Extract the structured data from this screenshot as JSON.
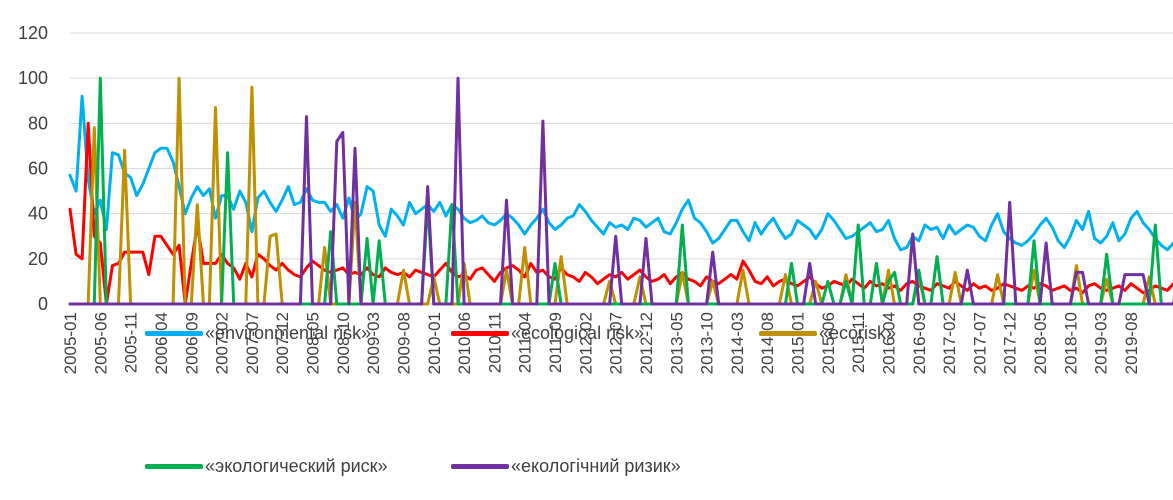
{
  "chart_data": {
    "type": "line",
    "ylim": [
      0,
      120
    ],
    "yticks": [
      "0",
      "20",
      "40",
      "60",
      "80",
      "100",
      "120"
    ],
    "grid": true,
    "legend_position": "bottom",
    "x_start": "2005-01",
    "x_labels": [
      "2005-01",
      "2005-06",
      "2005-11",
      "2006-04",
      "2006-09",
      "2007-02",
      "2007-07",
      "2007-12",
      "2008-05",
      "2008-10",
      "2009-03",
      "2009-08",
      "2010-01",
      "2010-06",
      "2010-11",
      "2011-04",
      "2011-09",
      "2012-02",
      "2012-07",
      "2012-12",
      "2013-05",
      "2013-10",
      "2014-03",
      "2014-08",
      "2015-01",
      "2015-06",
      "2015-11",
      "2016-04",
      "2016-09",
      "2017-02",
      "2017-07",
      "2017-12",
      "2018-05",
      "2018-10",
      "2019-03",
      "2019-08"
    ],
    "series": [
      {
        "name": "«environmental risk»",
        "color": "#00B0F0",
        "values": [
          57,
          50,
          92,
          55,
          40,
          46,
          33,
          67,
          66,
          58,
          56,
          48,
          53,
          60,
          67,
          69,
          69,
          63,
          52,
          40,
          47,
          52,
          48,
          51,
          38,
          48,
          48,
          42,
          50,
          45,
          32,
          47,
          50,
          45,
          41,
          46,
          52,
          44,
          45,
          51,
          46,
          45,
          45,
          41,
          44,
          38,
          47,
          37,
          40,
          52,
          50,
          35,
          30,
          42,
          39,
          35,
          45,
          40,
          42,
          44,
          41,
          45,
          39,
          44,
          42,
          38,
          36,
          37,
          39,
          36,
          35,
          37,
          40,
          38,
          35,
          31,
          35,
          38,
          42,
          36,
          33,
          35,
          38,
          39,
          44,
          41,
          37,
          34,
          31,
          36,
          34,
          35,
          33,
          38,
          37,
          34,
          36,
          38,
          32,
          31,
          36,
          42,
          46,
          38,
          36,
          32,
          27,
          29,
          33,
          37,
          37,
          32,
          28,
          36,
          31,
          35,
          38,
          33,
          29,
          31,
          37,
          35,
          33,
          29,
          33,
          40,
          37,
          33,
          29,
          30,
          32,
          34,
          36,
          32,
          33,
          37,
          29,
          24,
          25,
          30,
          28,
          35,
          33,
          34,
          29,
          35,
          31,
          33,
          35,
          34,
          30,
          28,
          35,
          40,
          32,
          29,
          27,
          26,
          28,
          31,
          35,
          38,
          34,
          28,
          25,
          30,
          37,
          33,
          41,
          29,
          27,
          30,
          36,
          28,
          31,
          38,
          41,
          36,
          33,
          29,
          26,
          24,
          27,
          30,
          33,
          30,
          28,
          35,
          38,
          36,
          32,
          29,
          27,
          25,
          29,
          34,
          36,
          38,
          33,
          30,
          26,
          24,
          31,
          33,
          35,
          38,
          36,
          29,
          27,
          33,
          40,
          41,
          37,
          34,
          30,
          24,
          26,
          29,
          33,
          38,
          35,
          33,
          28,
          30,
          36,
          34,
          27,
          29,
          32,
          38,
          43,
          35,
          30,
          26,
          24,
          27,
          32,
          31,
          34,
          29,
          27,
          30,
          33,
          35,
          32,
          26,
          24,
          26,
          31,
          35,
          37,
          33,
          28,
          26,
          24,
          26,
          36,
          32,
          35
        ]
      },
      {
        "name": "«ecological risk»",
        "color": "#FF0000",
        "values": [
          42,
          22,
          20,
          80,
          30,
          27,
          0,
          17,
          18,
          23,
          23,
          23,
          23,
          13,
          30,
          30,
          26,
          22,
          26,
          0,
          18,
          35,
          18,
          18,
          18,
          22,
          18,
          16,
          11,
          18,
          12,
          22,
          20,
          17,
          15,
          18,
          15,
          13,
          12,
          16,
          19,
          17,
          15,
          14,
          15,
          16,
          13,
          14,
          13,
          16,
          13,
          12,
          16,
          14,
          13,
          14,
          12,
          15,
          14,
          13,
          12,
          15,
          18,
          14,
          12,
          13,
          11,
          15,
          16,
          13,
          10,
          14,
          16,
          17,
          15,
          12,
          18,
          14,
          15,
          12,
          11,
          16,
          13,
          12,
          10,
          14,
          12,
          9,
          11,
          13,
          12,
          14,
          11,
          13,
          15,
          12,
          10,
          11,
          13,
          9,
          12,
          14,
          11,
          10,
          8,
          12,
          10,
          9,
          11,
          13,
          11,
          19,
          15,
          10,
          9,
          12,
          8,
          10,
          11,
          9,
          8,
          10,
          12,
          9,
          7,
          8,
          10,
          9,
          8,
          11,
          9,
          7,
          10,
          8,
          9,
          7,
          8,
          6,
          9,
          10,
          8,
          7,
          6,
          9,
          8,
          7,
          10,
          8,
          6,
          9,
          7,
          8,
          6,
          7,
          9,
          8,
          7,
          6,
          8,
          7,
          9,
          8,
          6,
          7,
          8,
          6,
          7,
          5,
          8,
          9,
          7,
          6,
          7,
          8,
          6,
          9,
          7,
          5,
          6,
          8,
          7,
          6,
          9,
          8,
          6,
          7,
          5,
          8,
          6,
          7,
          9,
          7,
          6,
          8,
          5,
          7,
          6,
          8,
          7,
          9,
          6,
          8,
          7,
          5,
          6,
          8,
          7,
          6,
          8,
          7,
          5,
          6,
          7,
          9,
          8,
          6,
          7,
          5,
          8,
          6,
          7,
          8,
          6,
          5,
          7,
          6,
          8,
          7,
          5,
          6,
          8,
          7,
          6,
          5,
          7,
          8,
          6,
          7,
          5,
          6,
          8,
          7,
          6,
          5,
          7,
          6,
          8,
          7,
          5,
          6,
          7,
          6,
          8,
          5,
          7,
          6,
          8,
          7
        ]
      },
      {
        "name": "«ecorisk»",
        "color": "#BF9000",
        "values": [
          0,
          0,
          0,
          0,
          78,
          0,
          0,
          0,
          0,
          68,
          0,
          0,
          0,
          0,
          0,
          0,
          0,
          0,
          100,
          0,
          0,
          44,
          0,
          0,
          87,
          0,
          0,
          0,
          0,
          0,
          96,
          0,
          0,
          30,
          31,
          0,
          0,
          0,
          0,
          0,
          0,
          0,
          25,
          0,
          0,
          0,
          0,
          45,
          0,
          0,
          0,
          0,
          0,
          0,
          0,
          15,
          0,
          0,
          0,
          0,
          12,
          0,
          0,
          0,
          0,
          18,
          0,
          0,
          0,
          0,
          0,
          0,
          15,
          0,
          0,
          25,
          0,
          0,
          0,
          0,
          0,
          21,
          0,
          0,
          0,
          0,
          0,
          0,
          0,
          10,
          0,
          0,
          0,
          0,
          12,
          0,
          0,
          0,
          0,
          0,
          0,
          14,
          0,
          0,
          0,
          0,
          10,
          0,
          0,
          0,
          0,
          15,
          0,
          0,
          0,
          0,
          0,
          0,
          13,
          0,
          0,
          0,
          0,
          10,
          0,
          0,
          0,
          0,
          13,
          0,
          0,
          0,
          0,
          0,
          0,
          15,
          0,
          0,
          0,
          0,
          12,
          0,
          0,
          0,
          0,
          0,
          14,
          0,
          0,
          0,
          0,
          0,
          0,
          13,
          0,
          0,
          0,
          0,
          0,
          15,
          0,
          0,
          0,
          0,
          0,
          0,
          17,
          0,
          0,
          0,
          0,
          11,
          0,
          0,
          0,
          0,
          0,
          0,
          12,
          0,
          0,
          0,
          0,
          0,
          0,
          10,
          0,
          0,
          0,
          0,
          0,
          0,
          0,
          8,
          0,
          0,
          0,
          0,
          0,
          0,
          9,
          0,
          0,
          0,
          0,
          0,
          0,
          11,
          0,
          0,
          0,
          0,
          0,
          0,
          9,
          0,
          0,
          0,
          0,
          0,
          0,
          8,
          0,
          0,
          0,
          0,
          0,
          0,
          7,
          0,
          0,
          0,
          0,
          0,
          0,
          10,
          0,
          0,
          0,
          0,
          0,
          0,
          9,
          0,
          0,
          0,
          0,
          0,
          0,
          8,
          0,
          0,
          0,
          0,
          0,
          0,
          7,
          0,
          0,
          0,
          0,
          0
        ]
      },
      {
        "name": "«экологический риск»",
        "color": "#00B050",
        "values": [
          0,
          0,
          0,
          0,
          0,
          100,
          0,
          0,
          0,
          0,
          0,
          0,
          0,
          0,
          0,
          0,
          0,
          0,
          0,
          0,
          0,
          0,
          0,
          0,
          0,
          0,
          67,
          0,
          0,
          0,
          0,
          0,
          0,
          0,
          0,
          0,
          0,
          0,
          0,
          0,
          0,
          0,
          0,
          32,
          0,
          0,
          0,
          0,
          0,
          29,
          0,
          28,
          0,
          0,
          0,
          0,
          0,
          0,
          0,
          45,
          0,
          0,
          0,
          44,
          0,
          0,
          0,
          0,
          0,
          0,
          0,
          0,
          0,
          0,
          0,
          0,
          0,
          0,
          0,
          0,
          18,
          0,
          0,
          0,
          0,
          0,
          0,
          0,
          0,
          0,
          0,
          0,
          0,
          0,
          0,
          0,
          0,
          0,
          0,
          0,
          0,
          35,
          0,
          0,
          0,
          0,
          0,
          0,
          0,
          0,
          0,
          0,
          0,
          0,
          0,
          0,
          0,
          0,
          0,
          18,
          0,
          0,
          0,
          0,
          0,
          10,
          0,
          0,
          10,
          0,
          35,
          0,
          0,
          18,
          0,
          10,
          14,
          0,
          0,
          0,
          15,
          0,
          0,
          21,
          0,
          0,
          0,
          0,
          0,
          0,
          0,
          0,
          0,
          0,
          0,
          0,
          0,
          0,
          0,
          28,
          0,
          0,
          0,
          0,
          0,
          0,
          0,
          0,
          0,
          0,
          0,
          22,
          0,
          0,
          0,
          0,
          0,
          0,
          0,
          35,
          0,
          0,
          0,
          0,
          0,
          0,
          12,
          0,
          0,
          0,
          15,
          0,
          41,
          0,
          0,
          28,
          0,
          0,
          0,
          0,
          0,
          0,
          0,
          0,
          0,
          0,
          0,
          0,
          0,
          0,
          17,
          0,
          0,
          11,
          0,
          11,
          0,
          0,
          0,
          0,
          15,
          0,
          0,
          0,
          0,
          20,
          0,
          0,
          0,
          0,
          0,
          0,
          0,
          0,
          0,
          0,
          10,
          0,
          0,
          0,
          0,
          0,
          0,
          0,
          0,
          0,
          0,
          0,
          0,
          0,
          0,
          0,
          0,
          0,
          0,
          0,
          0,
          0,
          0,
          0,
          0,
          0,
          0,
          0,
          0,
          0,
          0,
          0,
          0,
          0
        ]
      },
      {
        "name": "«екологічний ризик»",
        "color": "#7030A0",
        "values": [
          0,
          0,
          0,
          0,
          0,
          0,
          0,
          0,
          0,
          0,
          0,
          0,
          0,
          0,
          0,
          0,
          0,
          0,
          0,
          0,
          0,
          0,
          0,
          0,
          0,
          0,
          0,
          0,
          0,
          0,
          0,
          0,
          0,
          0,
          0,
          0,
          0,
          0,
          0,
          83,
          0,
          0,
          0,
          0,
          72,
          76,
          0,
          69,
          0,
          0,
          0,
          0,
          0,
          0,
          0,
          0,
          0,
          0,
          0,
          52,
          0,
          0,
          0,
          0,
          100,
          0,
          0,
          0,
          0,
          0,
          0,
          0,
          46,
          0,
          0,
          0,
          0,
          0,
          81,
          0,
          0,
          0,
          0,
          0,
          0,
          0,
          0,
          0,
          0,
          0,
          30,
          0,
          0,
          0,
          0,
          29,
          0,
          0,
          0,
          0,
          0,
          0,
          0,
          0,
          0,
          0,
          23,
          0,
          0,
          0,
          0,
          0,
          0,
          0,
          0,
          0,
          0,
          0,
          0,
          0,
          0,
          0,
          18,
          0,
          0,
          0,
          0,
          0,
          0,
          0,
          0,
          0,
          0,
          0,
          0,
          0,
          0,
          0,
          0,
          31,
          0,
          0,
          0,
          0,
          0,
          0,
          0,
          0,
          15,
          0,
          0,
          0,
          0,
          0,
          0,
          45,
          0,
          0,
          0,
          0,
          0,
          27,
          0,
          0,
          0,
          0,
          14,
          14,
          0,
          0,
          0,
          0,
          0,
          0,
          13,
          13,
          13,
          13,
          0,
          0,
          0,
          0,
          0,
          14,
          0,
          0,
          0,
          0,
          0,
          0,
          0,
          0,
          0,
          0,
          0,
          0,
          0,
          0,
          12,
          0,
          0,
          0,
          0,
          0,
          0,
          0,
          12,
          12,
          0,
          0,
          0,
          0,
          0,
          0,
          0,
          0,
          0,
          0,
          0,
          0,
          0,
          0,
          0,
          0,
          0,
          23,
          0,
          0,
          0,
          0,
          0,
          0,
          0,
          0,
          22,
          0,
          0,
          0,
          0,
          0,
          0,
          0,
          0,
          0,
          0,
          0,
          0,
          0,
          0,
          0,
          0,
          0,
          0,
          0,
          0,
          0,
          0,
          0,
          0,
          0,
          0,
          0,
          0,
          0
        ]
      }
    ]
  }
}
